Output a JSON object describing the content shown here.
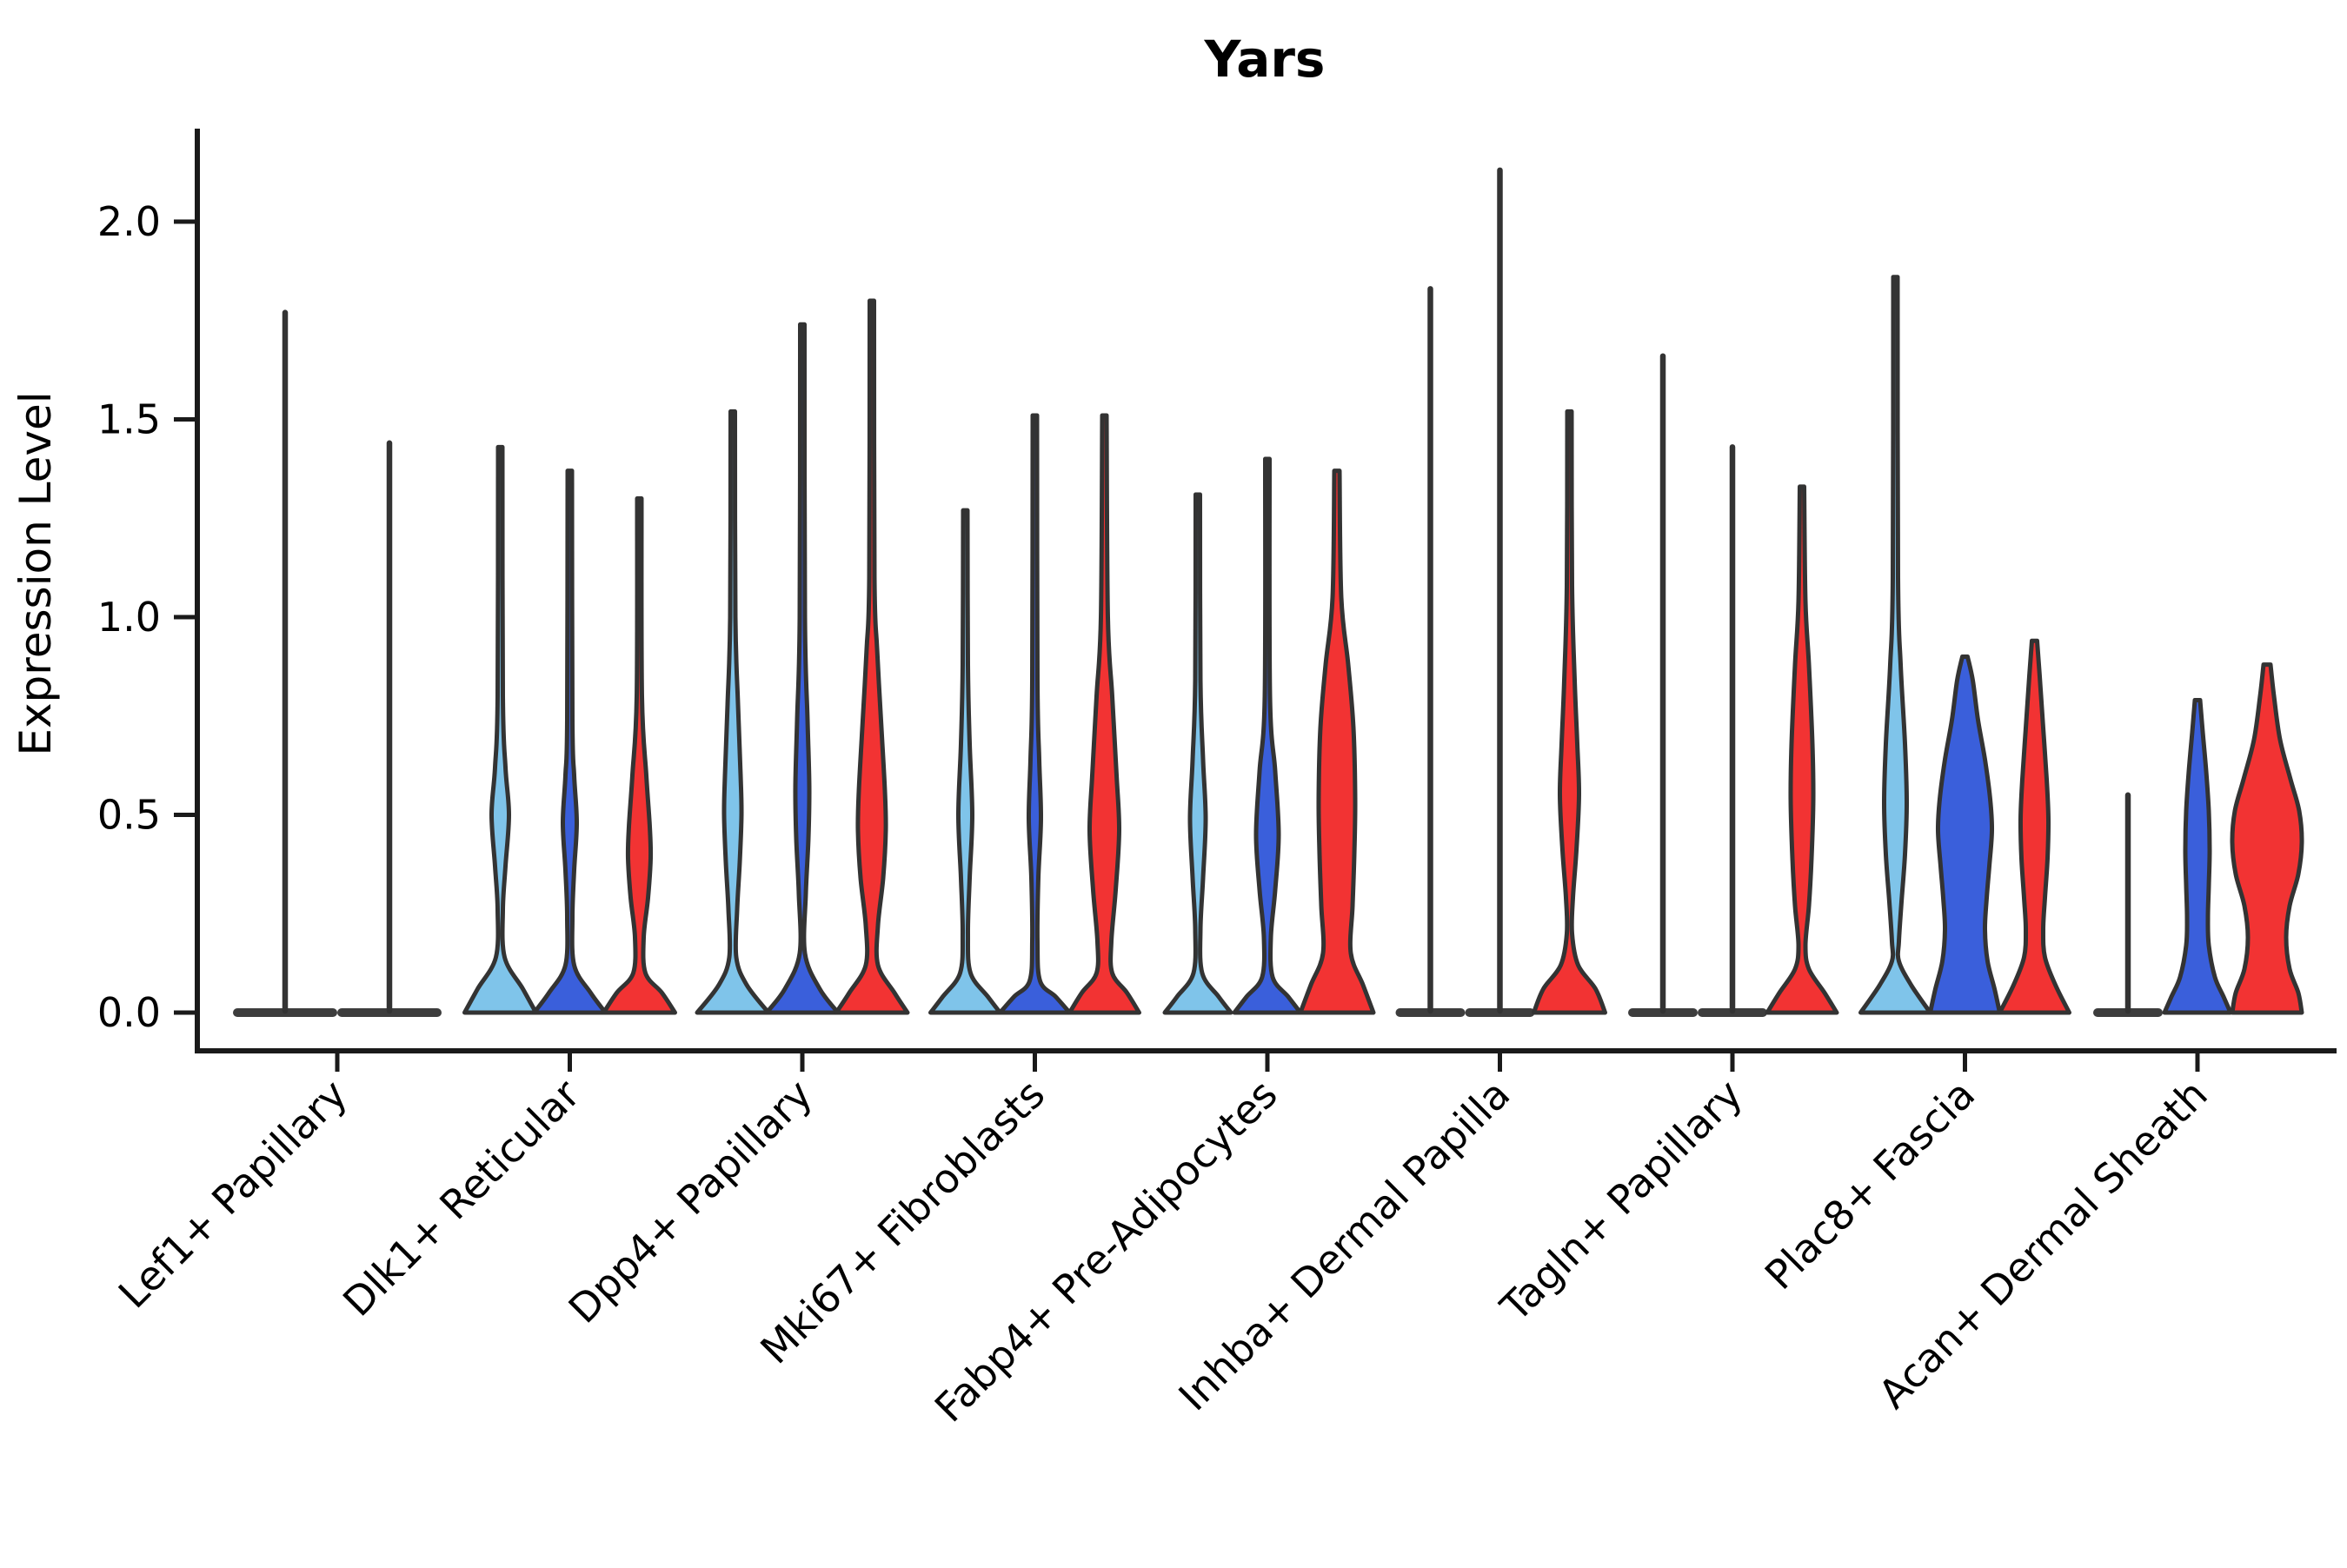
{
  "chart_data": {
    "type": "violin",
    "title": "Yars",
    "xlabel": "",
    "ylabel": "Expression Level",
    "ytick_labels": [
      "0.0",
      "0.5",
      "1.0",
      "1.5",
      "2.0"
    ],
    "ytick_values": [
      0.0,
      0.5,
      1.0,
      1.5,
      2.0
    ],
    "ylim": [
      -0.1,
      2.24
    ],
    "grid": false,
    "legend": "none",
    "split_colors": [
      "#7FC4EA",
      "#3A5FDB",
      "#F23333"
    ],
    "outline_color": "#333333",
    "categories": [
      "Lef1+ Papillary",
      "Dlk1+ Reticular",
      "Dpp4+ Papillary",
      "Mki67+ Fibroblasts",
      "Fabp4+ Pre-Adipocytes",
      "Inhba+ Dermal Papilla",
      "Tagln+ Papillary",
      "Plac8+ Fascia",
      "Acan+ Dermal Sheath"
    ],
    "violins": [
      [
        {
          "split": 0,
          "kind": "flat",
          "max": 1.77
        },
        {
          "split": 1,
          "kind": "flat",
          "max": 1.44
        }
      ],
      [
        {
          "split": 0,
          "kind": "body",
          "max": 1.43,
          "profile": [
            [
              1.43,
              2.5
            ],
            [
              0.8,
              3
            ],
            [
              0.62,
              6
            ],
            [
              0.5,
              10
            ],
            [
              0.37,
              6
            ],
            [
              0.26,
              3
            ],
            [
              0.14,
              5
            ],
            [
              0.06,
              26
            ],
            [
              0,
              41
            ]
          ]
        },
        {
          "split": 1,
          "kind": "body",
          "max": 1.37,
          "profile": [
            [
              1.37,
              2.5
            ],
            [
              0.74,
              3
            ],
            [
              0.6,
              5
            ],
            [
              0.48,
              8
            ],
            [
              0.36,
              5
            ],
            [
              0.24,
              3
            ],
            [
              0.12,
              5
            ],
            [
              0.05,
              24
            ],
            [
              0,
              41
            ]
          ]
        },
        {
          "split": 2,
          "kind": "body",
          "max": 1.3,
          "profile": [
            [
              1.3,
              2.5
            ],
            [
              0.8,
              3
            ],
            [
              0.6,
              8
            ],
            [
              0.47,
              12
            ],
            [
              0.39,
              13
            ],
            [
              0.29,
              10
            ],
            [
              0.19,
              5
            ],
            [
              0.1,
              7
            ],
            [
              0.05,
              26
            ],
            [
              0,
              41
            ]
          ]
        }
      ],
      [
        {
          "split": 0,
          "kind": "body",
          "max": 1.52,
          "profile": [
            [
              1.52,
              2.5
            ],
            [
              1.0,
              3
            ],
            [
              0.78,
              6
            ],
            [
              0.6,
              9
            ],
            [
              0.5,
              10
            ],
            [
              0.38,
              8
            ],
            [
              0.26,
              5
            ],
            [
              0.14,
              4
            ],
            [
              0.07,
              16
            ],
            [
              0,
              41
            ]
          ]
        },
        {
          "split": 1,
          "kind": "body",
          "max": 1.74,
          "profile": [
            [
              1.74,
              2.5
            ],
            [
              1.0,
              3
            ],
            [
              0.74,
              6
            ],
            [
              0.57,
              8
            ],
            [
              0.44,
              7
            ],
            [
              0.3,
              4
            ],
            [
              0.15,
              3
            ],
            [
              0.06,
              20
            ],
            [
              0,
              41
            ]
          ]
        },
        {
          "split": 2,
          "kind": "body",
          "max": 1.8,
          "profile": [
            [
              1.8,
              2.5
            ],
            [
              1.1,
              3
            ],
            [
              0.92,
              6
            ],
            [
              0.72,
              11
            ],
            [
              0.56,
              15
            ],
            [
              0.46,
              16
            ],
            [
              0.34,
              13
            ],
            [
              0.22,
              7
            ],
            [
              0.12,
              7
            ],
            [
              0.05,
              26
            ],
            [
              0,
              41
            ]
          ]
        }
      ],
      [
        {
          "split": 0,
          "kind": "body",
          "max": 1.27,
          "profile": [
            [
              1.27,
              2.5
            ],
            [
              0.88,
              3
            ],
            [
              0.68,
              5
            ],
            [
              0.5,
              8
            ],
            [
              0.34,
              5
            ],
            [
              0.2,
              3
            ],
            [
              0.1,
              6
            ],
            [
              0.04,
              26
            ],
            [
              0,
              40
            ]
          ]
        },
        {
          "split": 1,
          "kind": "body",
          "max": 1.51,
          "profile": [
            [
              1.51,
              2.5
            ],
            [
              0.84,
              3
            ],
            [
              0.64,
              5
            ],
            [
              0.49,
              7
            ],
            [
              0.34,
              4
            ],
            [
              0.18,
              3
            ],
            [
              0.08,
              6
            ],
            [
              0.04,
              24
            ],
            [
              0,
              40
            ]
          ]
        },
        {
          "split": 2,
          "kind": "body",
          "max": 1.51,
          "profile": [
            [
              1.51,
              2.5
            ],
            [
              1.0,
              4
            ],
            [
              0.8,
              9
            ],
            [
              0.6,
              14
            ],
            [
              0.46,
              17
            ],
            [
              0.31,
              13
            ],
            [
              0.18,
              8
            ],
            [
              0.1,
              9
            ],
            [
              0.05,
              26
            ],
            [
              0,
              40
            ]
          ]
        }
      ],
      [
        {
          "split": 0,
          "kind": "body",
          "max": 1.31,
          "profile": [
            [
              1.31,
              2.5
            ],
            [
              0.84,
              3
            ],
            [
              0.64,
              6
            ],
            [
              0.49,
              9
            ],
            [
              0.34,
              6
            ],
            [
              0.21,
              3
            ],
            [
              0.1,
              5
            ],
            [
              0.04,
              24
            ],
            [
              0,
              38
            ]
          ]
        },
        {
          "split": 1,
          "kind": "body",
          "max": 1.4,
          "profile": [
            [
              1.4,
              2.5
            ],
            [
              0.8,
              3
            ],
            [
              0.61,
              9
            ],
            [
              0.45,
              13
            ],
            [
              0.31,
              9
            ],
            [
              0.19,
              4
            ],
            [
              0.09,
              6
            ],
            [
              0.04,
              24
            ],
            [
              0,
              38
            ]
          ]
        },
        {
          "split": 2,
          "kind": "body",
          "max": 1.37,
          "profile": [
            [
              1.37,
              3
            ],
            [
              1.05,
              5
            ],
            [
              0.88,
              13
            ],
            [
              0.72,
              19
            ],
            [
              0.54,
              21
            ],
            [
              0.4,
              20
            ],
            [
              0.27,
              18
            ],
            [
              0.15,
              16
            ],
            [
              0.07,
              30
            ],
            [
              0,
              42
            ]
          ]
        }
      ],
      [
        {
          "split": 0,
          "kind": "flat",
          "max": 1.83
        },
        {
          "split": 1,
          "kind": "flat",
          "max": 2.13
        },
        {
          "split": 2,
          "kind": "body",
          "max": 1.52,
          "profile": [
            [
              1.52,
              2.5
            ],
            [
              1.08,
              3
            ],
            [
              0.84,
              6
            ],
            [
              0.68,
              9
            ],
            [
              0.55,
              11
            ],
            [
              0.41,
              8
            ],
            [
              0.29,
              4
            ],
            [
              0.2,
              3
            ],
            [
              0.12,
              10
            ],
            [
              0.06,
              30
            ],
            [
              0,
              41
            ]
          ]
        }
      ],
      [
        {
          "split": 0,
          "kind": "flat",
          "max": 1.66
        },
        {
          "split": 1,
          "kind": "flat",
          "max": 1.43
        },
        {
          "split": 2,
          "kind": "body",
          "max": 1.33,
          "profile": [
            [
              1.33,
              2.5
            ],
            [
              1.04,
              4
            ],
            [
              0.88,
              8
            ],
            [
              0.68,
              12
            ],
            [
              0.54,
              13
            ],
            [
              0.39,
              11
            ],
            [
              0.27,
              8
            ],
            [
              0.17,
              4
            ],
            [
              0.11,
              8
            ],
            [
              0.05,
              26
            ],
            [
              0,
              40
            ]
          ]
        }
      ],
      [
        {
          "split": 0,
          "kind": "body",
          "max": 1.86,
          "profile": [
            [
              1.86,
              2.5
            ],
            [
              1.1,
              3
            ],
            [
              0.88,
              6
            ],
            [
              0.68,
              11
            ],
            [
              0.53,
              13
            ],
            [
              0.4,
              11
            ],
            [
              0.28,
              7
            ],
            [
              0.18,
              4
            ],
            [
              0.13,
              4
            ],
            [
              0.07,
              18
            ],
            [
              0,
              40
            ]
          ]
        },
        {
          "split": 1,
          "kind": "body",
          "max": 0.9,
          "profile": [
            [
              0.9,
              3
            ],
            [
              0.84,
              9
            ],
            [
              0.74,
              15
            ],
            [
              0.64,
              23
            ],
            [
              0.54,
              29
            ],
            [
              0.46,
              31
            ],
            [
              0.37,
              28
            ],
            [
              0.29,
              25
            ],
            [
              0.21,
              23
            ],
            [
              0.13,
              26
            ],
            [
              0.06,
              34
            ],
            [
              0,
              40
            ]
          ]
        },
        {
          "split": 2,
          "kind": "body",
          "max": 0.94,
          "profile": [
            [
              0.94,
              3
            ],
            [
              0.85,
              6
            ],
            [
              0.72,
              10
            ],
            [
              0.59,
              14
            ],
            [
              0.49,
              16
            ],
            [
              0.39,
              15
            ],
            [
              0.29,
              12
            ],
            [
              0.21,
              10
            ],
            [
              0.14,
              12
            ],
            [
              0.07,
              24
            ],
            [
              0,
              40
            ]
          ]
        }
      ],
      [
        {
          "split": 0,
          "kind": "flat",
          "max": 0.55
        },
        {
          "split": 1,
          "kind": "body",
          "max": 0.79,
          "profile": [
            [
              0.79,
              3
            ],
            [
              0.71,
              6
            ],
            [
              0.61,
              10
            ],
            [
              0.51,
              13
            ],
            [
              0.41,
              14
            ],
            [
              0.32,
              13
            ],
            [
              0.24,
              12
            ],
            [
              0.17,
              13
            ],
            [
              0.09,
              20
            ],
            [
              0.04,
              30
            ],
            [
              0,
              38
            ]
          ]
        },
        {
          "split": 2,
          "kind": "body",
          "max": 0.88,
          "profile": [
            [
              0.88,
              4
            ],
            [
              0.8,
              8
            ],
            [
              0.69,
              15
            ],
            [
              0.59,
              27
            ],
            [
              0.51,
              37
            ],
            [
              0.43,
              40
            ],
            [
              0.35,
              36
            ],
            [
              0.27,
              26
            ],
            [
              0.19,
              22
            ],
            [
              0.11,
              26
            ],
            [
              0.05,
              36
            ],
            [
              0,
              40
            ]
          ]
        }
      ]
    ]
  }
}
